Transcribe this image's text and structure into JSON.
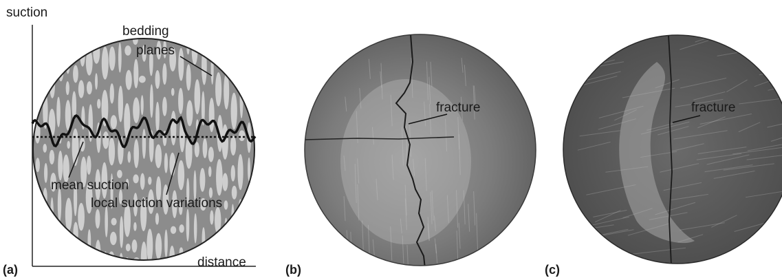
{
  "panels": [
    {
      "label": "(a)",
      "axes": {
        "y_label": "suction",
        "x_label": "distance"
      },
      "annotations": {
        "bedding_planes": [
          "bedding",
          "planes"
        ],
        "mean_suction": "mean suction",
        "local_variations": "local suction variations"
      }
    },
    {
      "label": "(b)",
      "annotation": "fracture"
    },
    {
      "label": "(c)",
      "annotation": "fracture"
    }
  ]
}
